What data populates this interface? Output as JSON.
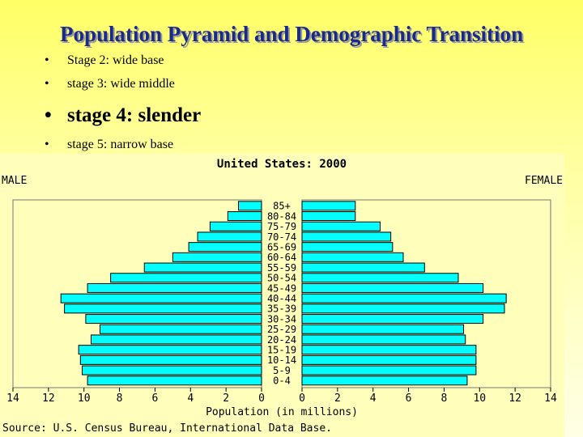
{
  "slide": {
    "title": "Population Pyramid and Demographic Transition",
    "bullets": [
      {
        "text": "Stage 2: wide base"
      },
      {
        "text": "stage 3: wide middle"
      },
      {
        "text": "stage 4: slender"
      },
      {
        "text": "stage 5: narrow base"
      }
    ]
  },
  "chart_data": {
    "type": "bar",
    "title": "United States: 2000",
    "left_label": "MALE",
    "right_label": "FEMALE",
    "xlabel": "Population (in millions)",
    "source": "Source: U.S. Census Bureau, International Data Base.",
    "xlim": [
      0,
      14
    ],
    "ticks": [
      "14",
      "12",
      "10",
      "8",
      "6",
      "4",
      "2",
      "0",
      "0",
      "2",
      "4",
      "6",
      "8",
      "10",
      "12",
      "14"
    ],
    "categories": [
      "85+",
      "80-84",
      "75-79",
      "70-74",
      "65-69",
      "60-64",
      "55-59",
      "50-54",
      "45-49",
      "40-44",
      "35-39",
      "30-34",
      "25-29",
      "20-24",
      "15-19",
      "10-14",
      "5-9",
      "0-4"
    ],
    "series": [
      {
        "name": "MALE",
        "values": [
          1.3,
          1.9,
          2.9,
          3.6,
          4.1,
          5.0,
          6.6,
          8.5,
          9.8,
          11.3,
          11.1,
          9.9,
          9.1,
          9.6,
          10.3,
          10.2,
          10.1,
          9.8
        ]
      },
      {
        "name": "FEMALE",
        "values": [
          3.0,
          3.0,
          4.4,
          5.0,
          5.1,
          5.7,
          6.9,
          8.8,
          10.2,
          11.5,
          11.4,
          10.2,
          9.1,
          9.2,
          9.8,
          9.8,
          9.8,
          9.3
        ]
      }
    ],
    "bar_color": "#00ffff",
    "bar_stroke": "#000000",
    "panel_color": "#ffffbb",
    "grid": false
  }
}
